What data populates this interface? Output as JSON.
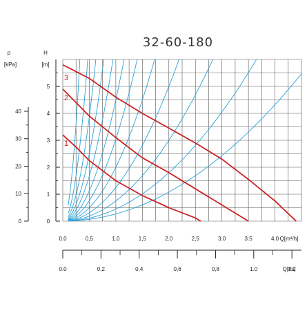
{
  "chart_data": {
    "type": "line",
    "title": "32-60-180",
    "left_axes": [
      {
        "label": "p",
        "unit": "[kPa]",
        "ticks": [
          "0",
          "10",
          "20",
          "30",
          "40"
        ],
        "tick_values": [
          0,
          10,
          20,
          30,
          40
        ]
      },
      {
        "label": "H",
        "unit": "[m]",
        "ticks": [
          "0",
          "1",
          "2",
          "3",
          "4",
          "5"
        ],
        "tick_values": [
          0,
          1,
          2,
          3,
          4,
          5
        ]
      }
    ],
    "bottom_axes": [
      {
        "label": "Q[m³/h]",
        "ticks": [
          "0.0",
          "0,5",
          "1.0",
          "1,5",
          "2.0",
          "2,5",
          "3.0",
          "3.5",
          "4.0"
        ],
        "tick_values": [
          0,
          0.5,
          1.0,
          1.5,
          2.0,
          2.5,
          3.0,
          3.5,
          4.0
        ]
      },
      {
        "label": "Q[l/s]",
        "ticks": [
          "0.0",
          "0,2",
          "0,4",
          "0,6",
          "0,8",
          "1.0",
          "1.2"
        ],
        "tick_values": [
          0,
          0.2,
          0.4,
          0.6,
          0.8,
          1.0,
          1.2
        ]
      }
    ],
    "xlim": [
      0,
      4.5
    ],
    "ylim": [
      0,
      6
    ],
    "grid": true,
    "series": [
      {
        "name": "1",
        "color": "#cc2222",
        "points": [
          [
            0.0,
            3.2
          ],
          [
            0.25,
            2.75
          ],
          [
            0.5,
            2.25
          ],
          [
            1.0,
            1.5
          ],
          [
            1.5,
            0.95
          ],
          [
            2.0,
            0.5
          ],
          [
            2.5,
            0.12
          ],
          [
            2.6,
            0.0
          ]
        ]
      },
      {
        "name": "2",
        "color": "#cc2222",
        "points": [
          [
            0.0,
            4.9
          ],
          [
            0.5,
            3.9
          ],
          [
            1.0,
            3.1
          ],
          [
            1.5,
            2.35
          ],
          [
            2.0,
            1.8
          ],
          [
            2.5,
            1.2
          ],
          [
            3.0,
            0.6
          ],
          [
            3.5,
            0.0
          ]
        ]
      },
      {
        "name": "3",
        "color": "#cc2222",
        "points": [
          [
            0.0,
            5.8
          ],
          [
            0.5,
            5.3
          ],
          [
            1.0,
            4.6
          ],
          [
            1.5,
            4.0
          ],
          [
            2.0,
            3.45
          ],
          [
            2.5,
            2.9
          ],
          [
            3.0,
            2.3
          ],
          [
            3.5,
            1.55
          ],
          [
            4.0,
            0.75
          ],
          [
            4.4,
            0.0
          ]
        ]
      }
    ],
    "system_curves": {
      "color": "#2aa0d8",
      "coefficients": [
        58,
        27,
        15.5,
        10,
        6.7,
        4.5,
        3.05,
        2.0,
        1.25,
        0.75,
        0.45,
        0.27
      ]
    }
  }
}
